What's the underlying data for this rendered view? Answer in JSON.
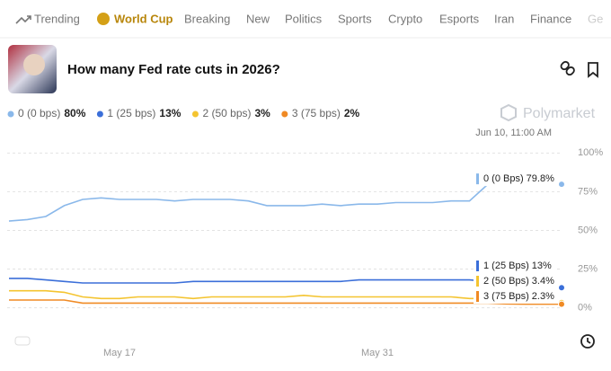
{
  "nav": {
    "tabs": [
      "Trending",
      "World Cup",
      "Breaking",
      "New",
      "Politics",
      "Sports",
      "Crypto",
      "Esports",
      "Iran",
      "Finance",
      "Ge"
    ]
  },
  "header": {
    "title": "How many Fed rate cuts in 2026?",
    "brand": "Polymarket",
    "timestamp": "Jun 10, 11:00 AM"
  },
  "chart_data": {
    "type": "line",
    "categories": [
      null,
      null,
      null,
      null,
      null,
      null,
      "May 17",
      null,
      null,
      null,
      null,
      null,
      null,
      null,
      null,
      null,
      null,
      null,
      null,
      null,
      "May 31",
      null,
      null,
      null,
      null,
      null,
      null,
      null,
      null,
      null,
      null
    ],
    "series": [
      {
        "name": "0 (0 bps)",
        "legend_value": "80%",
        "tag": "0 (0 Bps) 79.8%",
        "color": "#8ab8ea",
        "values": [
          56,
          57,
          59,
          66,
          70,
          71,
          70,
          70,
          70,
          69,
          70,
          70,
          70,
          69,
          66,
          66,
          66,
          67,
          66,
          67,
          67,
          68,
          68,
          68,
          69,
          69,
          79.8,
          79.8,
          79.8,
          79.8,
          79.8
        ]
      },
      {
        "name": "1 (25 bps)",
        "legend_value": "13%",
        "tag": "1 (25 Bps) 13%",
        "color": "#3b6fd9",
        "values": [
          19,
          19,
          18,
          17,
          16,
          16,
          16,
          16,
          16,
          16,
          17,
          17,
          17,
          17,
          17,
          17,
          17,
          17,
          17,
          18,
          18,
          18,
          18,
          18,
          18,
          18,
          17,
          14,
          13,
          13,
          13
        ]
      },
      {
        "name": "2 (50 bps)",
        "legend_value": "3%",
        "tag": "2 (50 Bps) 3.4%",
        "color": "#f4c430",
        "values": [
          11,
          11,
          11,
          10,
          7,
          6,
          6,
          7,
          7,
          7,
          6,
          7,
          7,
          7,
          7,
          7,
          8,
          7,
          7,
          7,
          7,
          7,
          7,
          7,
          7,
          6,
          6,
          4,
          3.4,
          3.4,
          3.4
        ]
      },
      {
        "name": "3 (75 bps)",
        "legend_value": "2%",
        "tag": "3 (75 Bps) 2.3%",
        "color": "#f08a24",
        "values": [
          5,
          5,
          5,
          5,
          3,
          3,
          3,
          3,
          3,
          3,
          3,
          3,
          3,
          3,
          3,
          3,
          3,
          3,
          3,
          3,
          3,
          3,
          3,
          3,
          3,
          3,
          3,
          2.5,
          2.3,
          2.3,
          2.3
        ]
      }
    ],
    "ylim": [
      -13,
      106
    ],
    "yticks": [
      {
        "value": 0,
        "label": "0%"
      },
      {
        "value": 25,
        "label": "25%"
      },
      {
        "value": 50,
        "label": "50%"
      },
      {
        "value": 75,
        "label": "75%"
      },
      {
        "value": 100,
        "label": "100%"
      }
    ],
    "grid": true
  }
}
